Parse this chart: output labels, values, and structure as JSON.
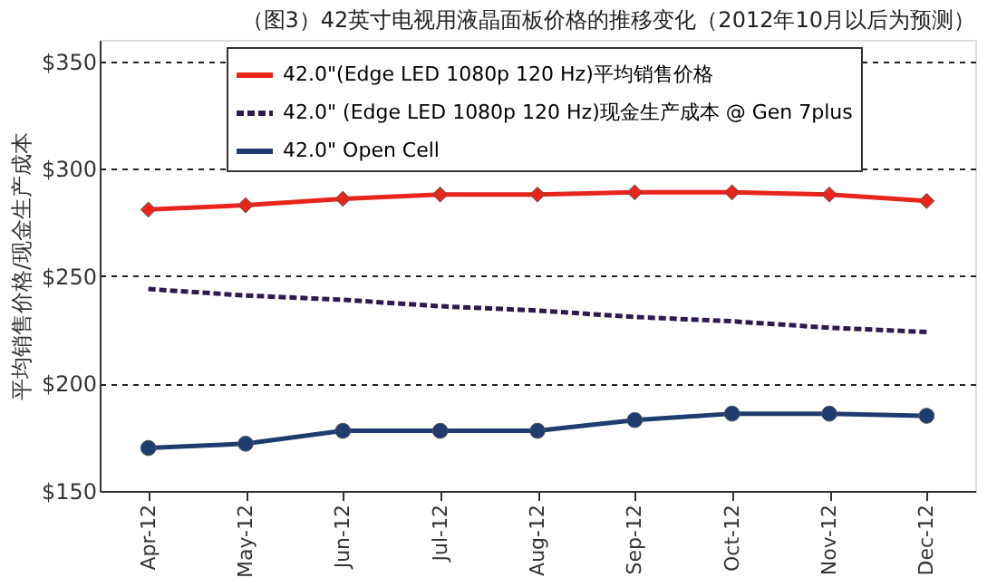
{
  "chart_data": {
    "type": "line",
    "title": "（图3）42英寸电视用液晶面板价格的推移变化（2012年10月以后为预测）",
    "ylabel": "平均销售价格/现金生产成本",
    "categories": [
      "Apr-12",
      "May-12",
      "Jun-12",
      "Jul-12",
      "Aug-12",
      "Sep-12",
      "Oct-12",
      "Nov-12",
      "Dec-12"
    ],
    "series": [
      {
        "name": "42.0\"(Edge LED 1080p 120 Hz)平均销售价格",
        "color": "#e8251c",
        "values": [
          281,
          283,
          286,
          288,
          288,
          289,
          289,
          288,
          285
        ],
        "marker": "diamond",
        "line_style": "solid"
      },
      {
        "name": "42.0\" (Edge LED 1080p 120 Hz)现金生产成本 @ Gen 7plus",
        "color": "#2e1a4e",
        "values": [
          244,
          241,
          239,
          236,
          234,
          231,
          229,
          226,
          224
        ],
        "marker": "none",
        "line_style": "dashed"
      },
      {
        "name": "42.0\"  Open Cell",
        "color": "#1f3c6e",
        "values": [
          170,
          172,
          178,
          178,
          178,
          183,
          186,
          186,
          185
        ],
        "marker": "circle",
        "line_style": "solid"
      }
    ],
    "ylim": [
      150,
      360
    ],
    "yticks": [
      {
        "value": 150,
        "label": "$150"
      },
      {
        "value": 200,
        "label": "$200"
      },
      {
        "value": 250,
        "label": "$250"
      },
      {
        "value": 300,
        "label": "$300"
      },
      {
        "value": 350,
        "label": "$350"
      }
    ],
    "grid": "y",
    "legend": "top"
  }
}
